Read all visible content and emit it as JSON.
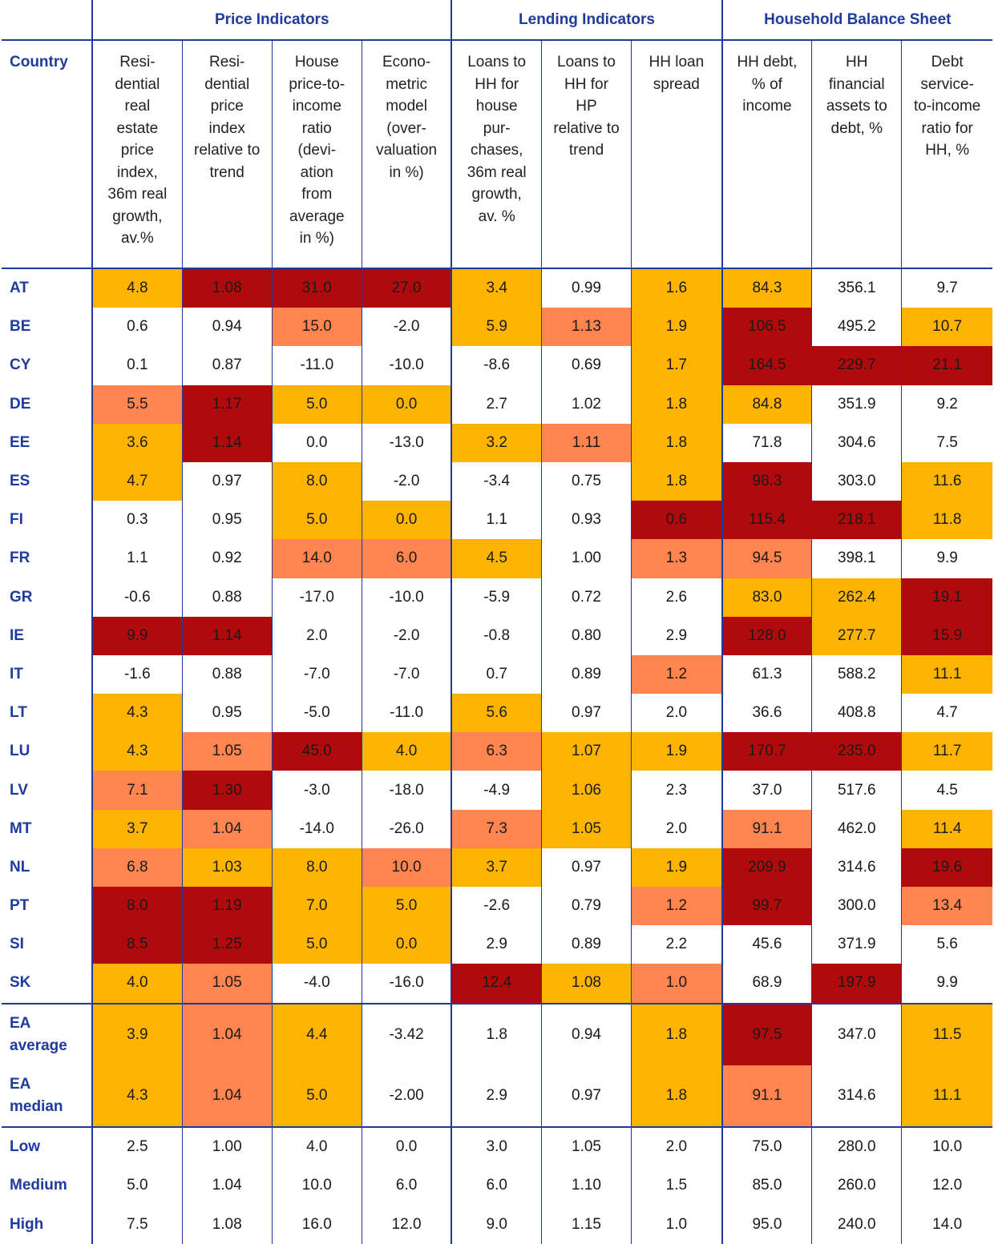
{
  "groups": [
    "Price Indicators",
    "Lending Indicators",
    "Household Balance Sheet"
  ],
  "columns": [
    "Country",
    "Resi-\ndential\nreal\nestate\nprice\nindex,\n36m real\ngrowth,\nav.%",
    "Resi-\ndential\nprice\nindex\nrelative to\ntrend",
    "House\nprice-to-\nincome\nratio\n(devi-\nation\nfrom\naverage\nin %)",
    "Econo-\nmetric\nmodel\n(over-\nvaluation\nin %)",
    "Loans to\nHH for\nhouse\npur-\nchases,\n36m real\ngrowth,\nav. %",
    "Loans to\nHH for\nHP\nrelative to\ntrend",
    "HH loan\nspread",
    "HH debt,\n% of\nincome",
    "HH\nfinancial\nassets to\ndebt, %",
    "Debt\nservice-\nto-income\nratio for\nHH, %"
  ],
  "colors": {
    "y": "#fdb400",
    "o": "#ff8550",
    "r": "#b10a0c",
    "header": "#1f3b9e"
  },
  "rows": [
    {
      "label": "AT",
      "values": [
        "4.8",
        "1.08",
        "31.0",
        "27.0",
        "3.4",
        "0.99",
        "1.6",
        "84.3",
        "356.1",
        "9.7"
      ],
      "colors": [
        "y",
        "r",
        "r",
        "r",
        "y",
        "",
        "y",
        "y",
        "",
        ""
      ]
    },
    {
      "label": "BE",
      "values": [
        "0.6",
        "0.94",
        "15.0",
        "-2.0",
        "5.9",
        "1.13",
        "1.9",
        "106.5",
        "495.2",
        "10.7"
      ],
      "colors": [
        "",
        "",
        "o",
        "",
        "y",
        "o",
        "y",
        "r",
        "",
        "y"
      ]
    },
    {
      "label": "CY",
      "values": [
        "0.1",
        "0.87",
        "-11.0",
        "-10.0",
        "-8.6",
        "0.69",
        "1.7",
        "164.5",
        "229.7",
        "21.1"
      ],
      "colors": [
        "",
        "",
        "",
        "",
        "",
        "",
        "y",
        "r",
        "r",
        "r"
      ]
    },
    {
      "label": "DE",
      "values": [
        "5.5",
        "1.17",
        "5.0",
        "0.0",
        "2.7",
        "1.02",
        "1.8",
        "84.8",
        "351.9",
        "9.2"
      ],
      "colors": [
        "o",
        "r",
        "y",
        "y",
        "",
        "",
        "y",
        "y",
        "",
        ""
      ]
    },
    {
      "label": "EE",
      "values": [
        "3.6",
        "1.14",
        "0.0",
        "-13.0",
        "3.2",
        "1.11",
        "1.8",
        "71.8",
        "304.6",
        "7.5"
      ],
      "colors": [
        "y",
        "r",
        "",
        "",
        "y",
        "o",
        "y",
        "",
        "",
        ""
      ]
    },
    {
      "label": "ES",
      "values": [
        "4.7",
        "0.97",
        "8.0",
        "-2.0",
        "-3.4",
        "0.75",
        "1.8",
        "98.3",
        "303.0",
        "11.6"
      ],
      "colors": [
        "y",
        "",
        "y",
        "",
        "",
        "",
        "y",
        "r",
        "",
        "y"
      ]
    },
    {
      "label": "FI",
      "values": [
        "0.3",
        "0.95",
        "5.0",
        "0.0",
        "1.1",
        "0.93",
        "0.6",
        "115.4",
        "218.1",
        "11.8"
      ],
      "colors": [
        "",
        "",
        "y",
        "y",
        "",
        "",
        "r",
        "r",
        "r",
        "y"
      ]
    },
    {
      "label": "FR",
      "values": [
        "1.1",
        "0.92",
        "14.0",
        "6.0",
        "4.5",
        "1.00",
        "1.3",
        "94.5",
        "398.1",
        "9.9"
      ],
      "colors": [
        "",
        "",
        "o",
        "o",
        "y",
        "",
        "o",
        "o",
        "",
        ""
      ]
    },
    {
      "label": "GR",
      "values": [
        "-0.6",
        "0.88",
        "-17.0",
        "-10.0",
        "-5.9",
        "0.72",
        "2.6",
        "83.0",
        "262.4",
        "19.1"
      ],
      "colors": [
        "",
        "",
        "",
        "",
        "",
        "",
        "",
        "y",
        "y",
        "r"
      ]
    },
    {
      "label": "IE",
      "values": [
        "9.9",
        "1.14",
        "2.0",
        "-2.0",
        "-0.8",
        "0.80",
        "2.9",
        "128.0",
        "277.7",
        "15.9"
      ],
      "colors": [
        "r",
        "r",
        "",
        "",
        "",
        "",
        "",
        "r",
        "y",
        "r"
      ]
    },
    {
      "label": "IT",
      "values": [
        "-1.6",
        "0.88",
        "-7.0",
        "-7.0",
        "0.7",
        "0.89",
        "1.2",
        "61.3",
        "588.2",
        "11.1"
      ],
      "colors": [
        "",
        "",
        "",
        "",
        "",
        "",
        "o",
        "",
        "",
        "y"
      ]
    },
    {
      "label": "LT",
      "values": [
        "4.3",
        "0.95",
        "-5.0",
        "-11.0",
        "5.6",
        "0.97",
        "2.0",
        "36.6",
        "408.8",
        "4.7"
      ],
      "colors": [
        "y",
        "",
        "",
        "",
        "y",
        "",
        "",
        "",
        "",
        ""
      ]
    },
    {
      "label": "LU",
      "values": [
        "4.3",
        "1.05",
        "45.0",
        "4.0",
        "6.3",
        "1.07",
        "1.9",
        "170.7",
        "235.0",
        "11.7"
      ],
      "colors": [
        "y",
        "o",
        "r",
        "y",
        "o",
        "y",
        "y",
        "r",
        "r",
        "y"
      ]
    },
    {
      "label": "LV",
      "values": [
        "7.1",
        "1.30",
        "-3.0",
        "-18.0",
        "-4.9",
        "1.06",
        "2.3",
        "37.0",
        "517.6",
        "4.5"
      ],
      "colors": [
        "o",
        "r",
        "",
        "",
        "",
        "y",
        "",
        "",
        "",
        ""
      ]
    },
    {
      "label": "MT",
      "values": [
        "3.7",
        "1.04",
        "-14.0",
        "-26.0",
        "7.3",
        "1.05",
        "2.0",
        "91.1",
        "462.0",
        "11.4"
      ],
      "colors": [
        "y",
        "o",
        "",
        "",
        "o",
        "y",
        "",
        "o",
        "",
        "y"
      ]
    },
    {
      "label": "NL",
      "values": [
        "6.8",
        "1.03",
        "8.0",
        "10.0",
        "3.7",
        "0.97",
        "1.9",
        "209.9",
        "314.6",
        "19.6"
      ],
      "colors": [
        "o",
        "y",
        "y",
        "o",
        "y",
        "",
        "y",
        "r",
        "",
        "r"
      ]
    },
    {
      "label": "PT",
      "values": [
        "8.0",
        "1.19",
        "7.0",
        "5.0",
        "-2.6",
        "0.79",
        "1.2",
        "99.7",
        "300.0",
        "13.4"
      ],
      "colors": [
        "r",
        "r",
        "y",
        "y",
        "",
        "",
        "o",
        "r",
        "",
        "o"
      ]
    },
    {
      "label": "SI",
      "values": [
        "8.5",
        "1.25",
        "5.0",
        "0.0",
        "2.9",
        "0.89",
        "2.2",
        "45.6",
        "371.9",
        "5.6"
      ],
      "colors": [
        "r",
        "r",
        "y",
        "y",
        "",
        "",
        "",
        "",
        "",
        ""
      ]
    },
    {
      "label": "SK",
      "values": [
        "4.0",
        "1.05",
        "-4.0",
        "-16.0",
        "12.4",
        "1.08",
        "1.0",
        "68.9",
        "197.9",
        "9.9"
      ],
      "colors": [
        "y",
        "o",
        "",
        "",
        "r",
        "y",
        "o",
        "",
        "r",
        ""
      ]
    }
  ],
  "aggregates": [
    {
      "label_line1": "EA",
      "label_line2": "average",
      "values": [
        "3.9",
        "1.04",
        "4.4",
        "-3.42",
        "1.8",
        "0.94",
        "1.8",
        "97.5",
        "347.0",
        "11.5"
      ],
      "colors": [
        "y",
        "o",
        "y",
        "",
        "",
        "",
        "y",
        "r",
        "",
        "y"
      ]
    },
    {
      "label_line1": "EA",
      "label_line2": "median",
      "values": [
        "4.3",
        "1.04",
        "5.0",
        "-2.00",
        "2.9",
        "0.97",
        "1.8",
        "91.1",
        "314.6",
        "11.1"
      ],
      "colors": [
        "y",
        "o",
        "y",
        "",
        "",
        "",
        "y",
        "o",
        "",
        "y"
      ]
    }
  ],
  "thresholds": [
    {
      "label": "Low",
      "values": [
        "2.5",
        "1.00",
        "4.0",
        "0.0",
        "3.0",
        "1.05",
        "2.0",
        "75.0",
        "280.0",
        "10.0"
      ]
    },
    {
      "label": "Medium",
      "values": [
        "5.0",
        "1.04",
        "10.0",
        "6.0",
        "6.0",
        "1.10",
        "1.5",
        "85.0",
        "260.0",
        "12.0"
      ]
    },
    {
      "label": "High",
      "values": [
        "7.5",
        "1.08",
        "16.0",
        "12.0",
        "9.0",
        "1.15",
        "1.0",
        "95.0",
        "240.0",
        "14.0"
      ]
    }
  ]
}
